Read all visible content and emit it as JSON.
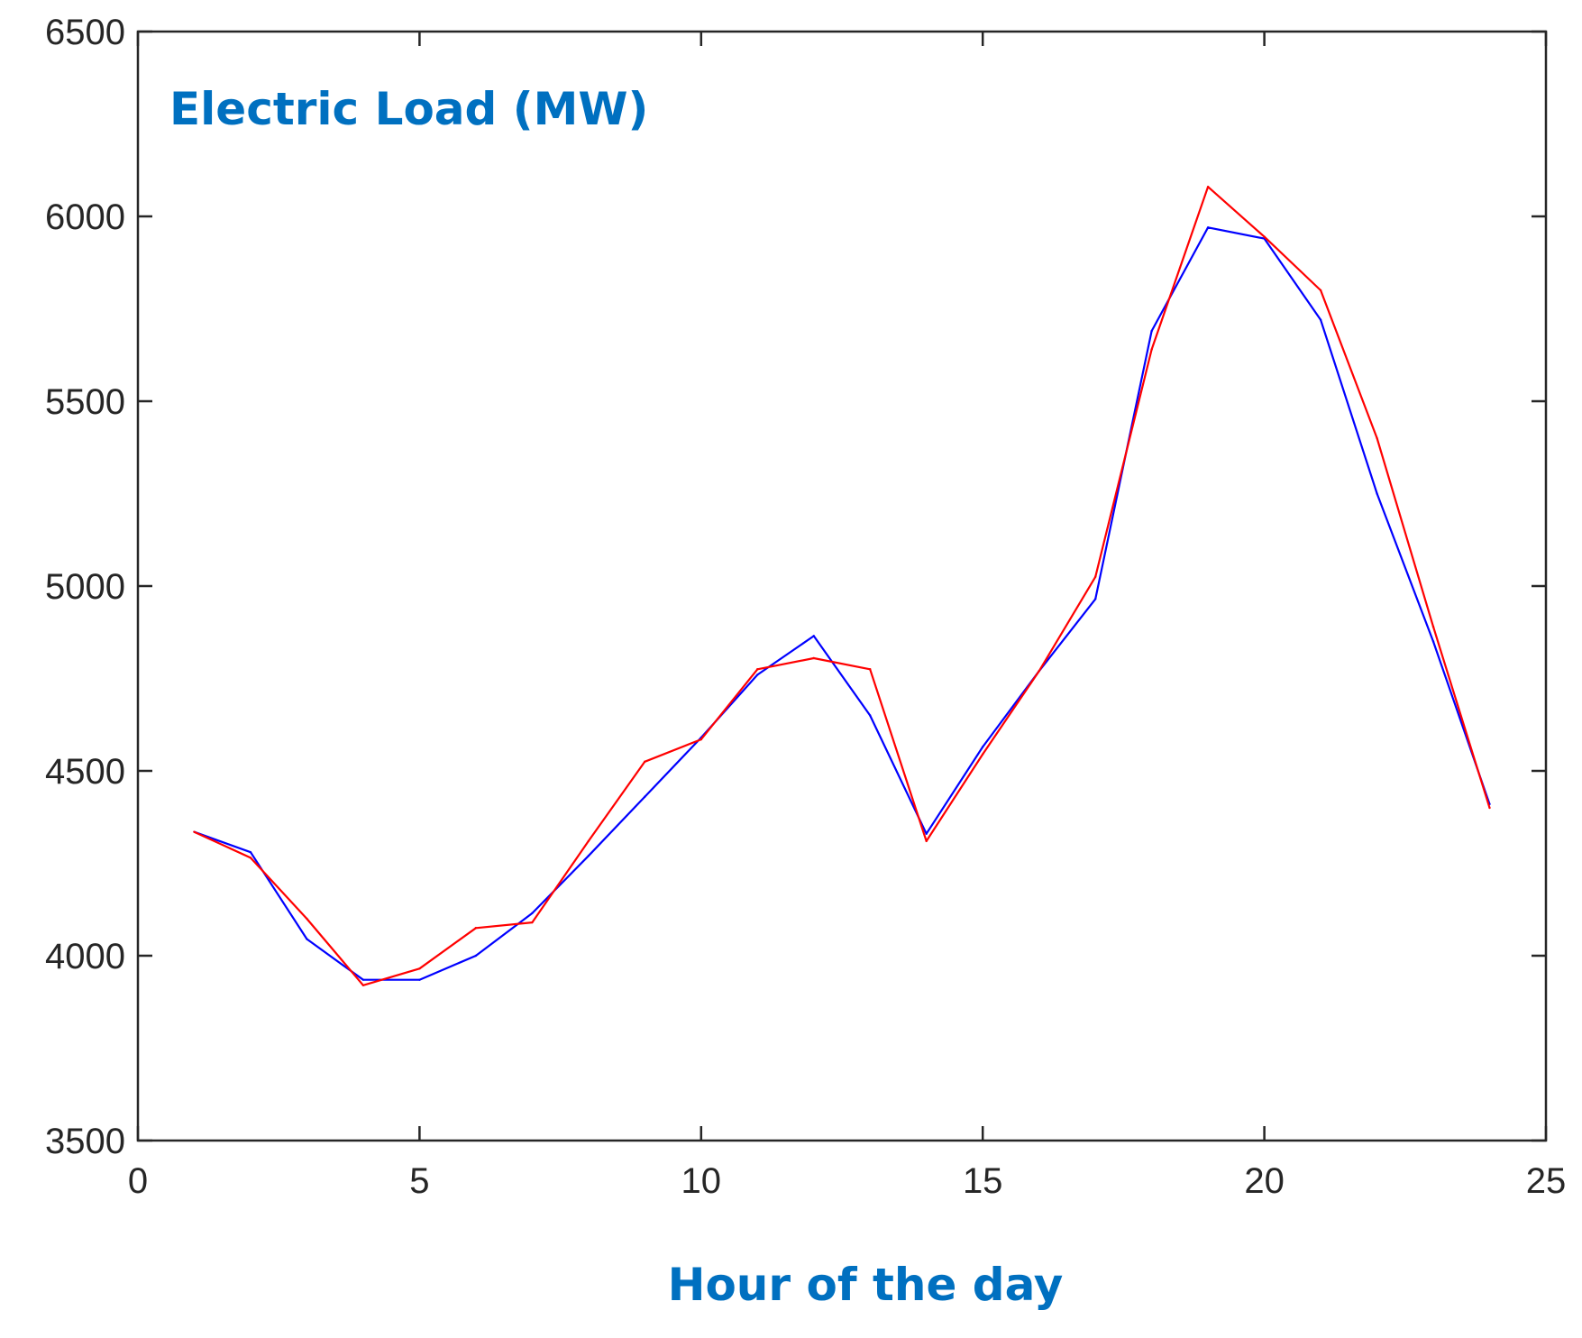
{
  "chart_data": {
    "type": "line",
    "title": "Electric Load (MW)",
    "xlabel": "Hour of the day",
    "ylabel": "",
    "xlim": [
      0,
      25
    ],
    "ylim": [
      3500,
      6500
    ],
    "xticks": [
      0,
      5,
      10,
      15,
      20,
      25
    ],
    "yticks": [
      3500,
      4000,
      4500,
      5000,
      5500,
      6000,
      6500
    ],
    "grid": false,
    "legend": "none",
    "x": [
      1,
      2,
      3,
      4,
      5,
      6,
      7,
      8,
      9,
      10,
      11,
      12,
      13,
      14,
      15,
      16,
      17,
      18,
      19,
      20,
      21,
      22,
      23,
      24
    ],
    "series": [
      {
        "color": "#0000ff",
        "values": [
          4335,
          4280,
          4045,
          3935,
          3935,
          4000,
          4115,
          4270,
          4430,
          4590,
          4760,
          4865,
          4650,
          4330,
          4565,
          4770,
          4965,
          5690,
          5970,
          5940,
          5720,
          5250,
          4850,
          4410
        ]
      },
      {
        "color": "#ff0000",
        "values": [
          4335,
          4265,
          4100,
          3920,
          3965,
          4075,
          4090,
          4310,
          4525,
          4585,
          4775,
          4805,
          4775,
          4310,
          4545,
          4770,
          5025,
          5640,
          6080,
          5945,
          5800,
          5400,
          4890,
          4400
        ]
      }
    ]
  }
}
